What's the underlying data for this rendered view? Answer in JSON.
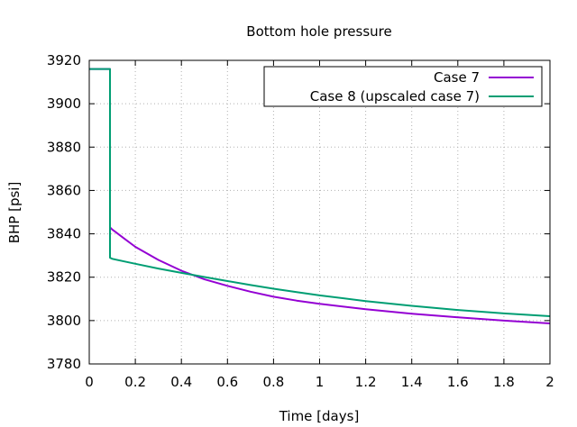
{
  "chart_data": {
    "type": "line",
    "title": "Bottom hole pressure",
    "xlabel": "Time [days]",
    "ylabel": "BHP [psi]",
    "xlim": [
      0,
      2
    ],
    "ylim": [
      3780,
      3920
    ],
    "grid": true,
    "legend_position": "top-right",
    "x_ticks": [
      {
        "value": 0,
        "label": "0"
      },
      {
        "value": 0.2,
        "label": "0.2"
      },
      {
        "value": 0.4,
        "label": "0.4"
      },
      {
        "value": 0.6,
        "label": "0.6"
      },
      {
        "value": 0.8,
        "label": "0.8"
      },
      {
        "value": 1,
        "label": "1"
      },
      {
        "value": 1.2,
        "label": "1.2"
      },
      {
        "value": 1.4,
        "label": "1.4"
      },
      {
        "value": 1.6,
        "label": "1.6"
      },
      {
        "value": 1.8,
        "label": "1.8"
      },
      {
        "value": 2,
        "label": "2"
      }
    ],
    "y_ticks": [
      {
        "value": 3780,
        "label": "3780"
      },
      {
        "value": 3800,
        "label": "3800"
      },
      {
        "value": 3820,
        "label": "3820"
      },
      {
        "value": 3840,
        "label": "3840"
      },
      {
        "value": 3860,
        "label": "3860"
      },
      {
        "value": 3880,
        "label": "3880"
      },
      {
        "value": 3900,
        "label": "3900"
      },
      {
        "value": 3920,
        "label": "3920"
      }
    ],
    "series": [
      {
        "name": "Case 7",
        "color": "#9400d3",
        "x": [
          0,
          0.09,
          0.09,
          0.1,
          0.15,
          0.2,
          0.3,
          0.4,
          0.5,
          0.6,
          0.7,
          0.8,
          0.9,
          1.0,
          1.2,
          1.4,
          1.6,
          1.8,
          2.0
        ],
        "y": [
          3916,
          3916,
          3843,
          3842,
          3838,
          3834,
          3828,
          3823,
          3819,
          3816,
          3813.3,
          3811,
          3809.2,
          3807.7,
          3805.2,
          3803.2,
          3801.5,
          3800,
          3798.7
        ]
      },
      {
        "name": "Case 8 (upscaled case 7)",
        "color": "#009e73",
        "x": [
          0,
          0.09,
          0.09,
          0.1,
          0.2,
          0.3,
          0.4,
          0.5,
          0.6,
          0.7,
          0.8,
          0.9,
          1.0,
          1.2,
          1.4,
          1.6,
          1.8,
          2.0
        ],
        "y": [
          3916,
          3916,
          3829,
          3828.5,
          3826.2,
          3824,
          3822,
          3820.1,
          3818.2,
          3816.4,
          3814.7,
          3813.1,
          3811.6,
          3809,
          3806.8,
          3804.9,
          3803.3,
          3802
        ]
      }
    ]
  }
}
